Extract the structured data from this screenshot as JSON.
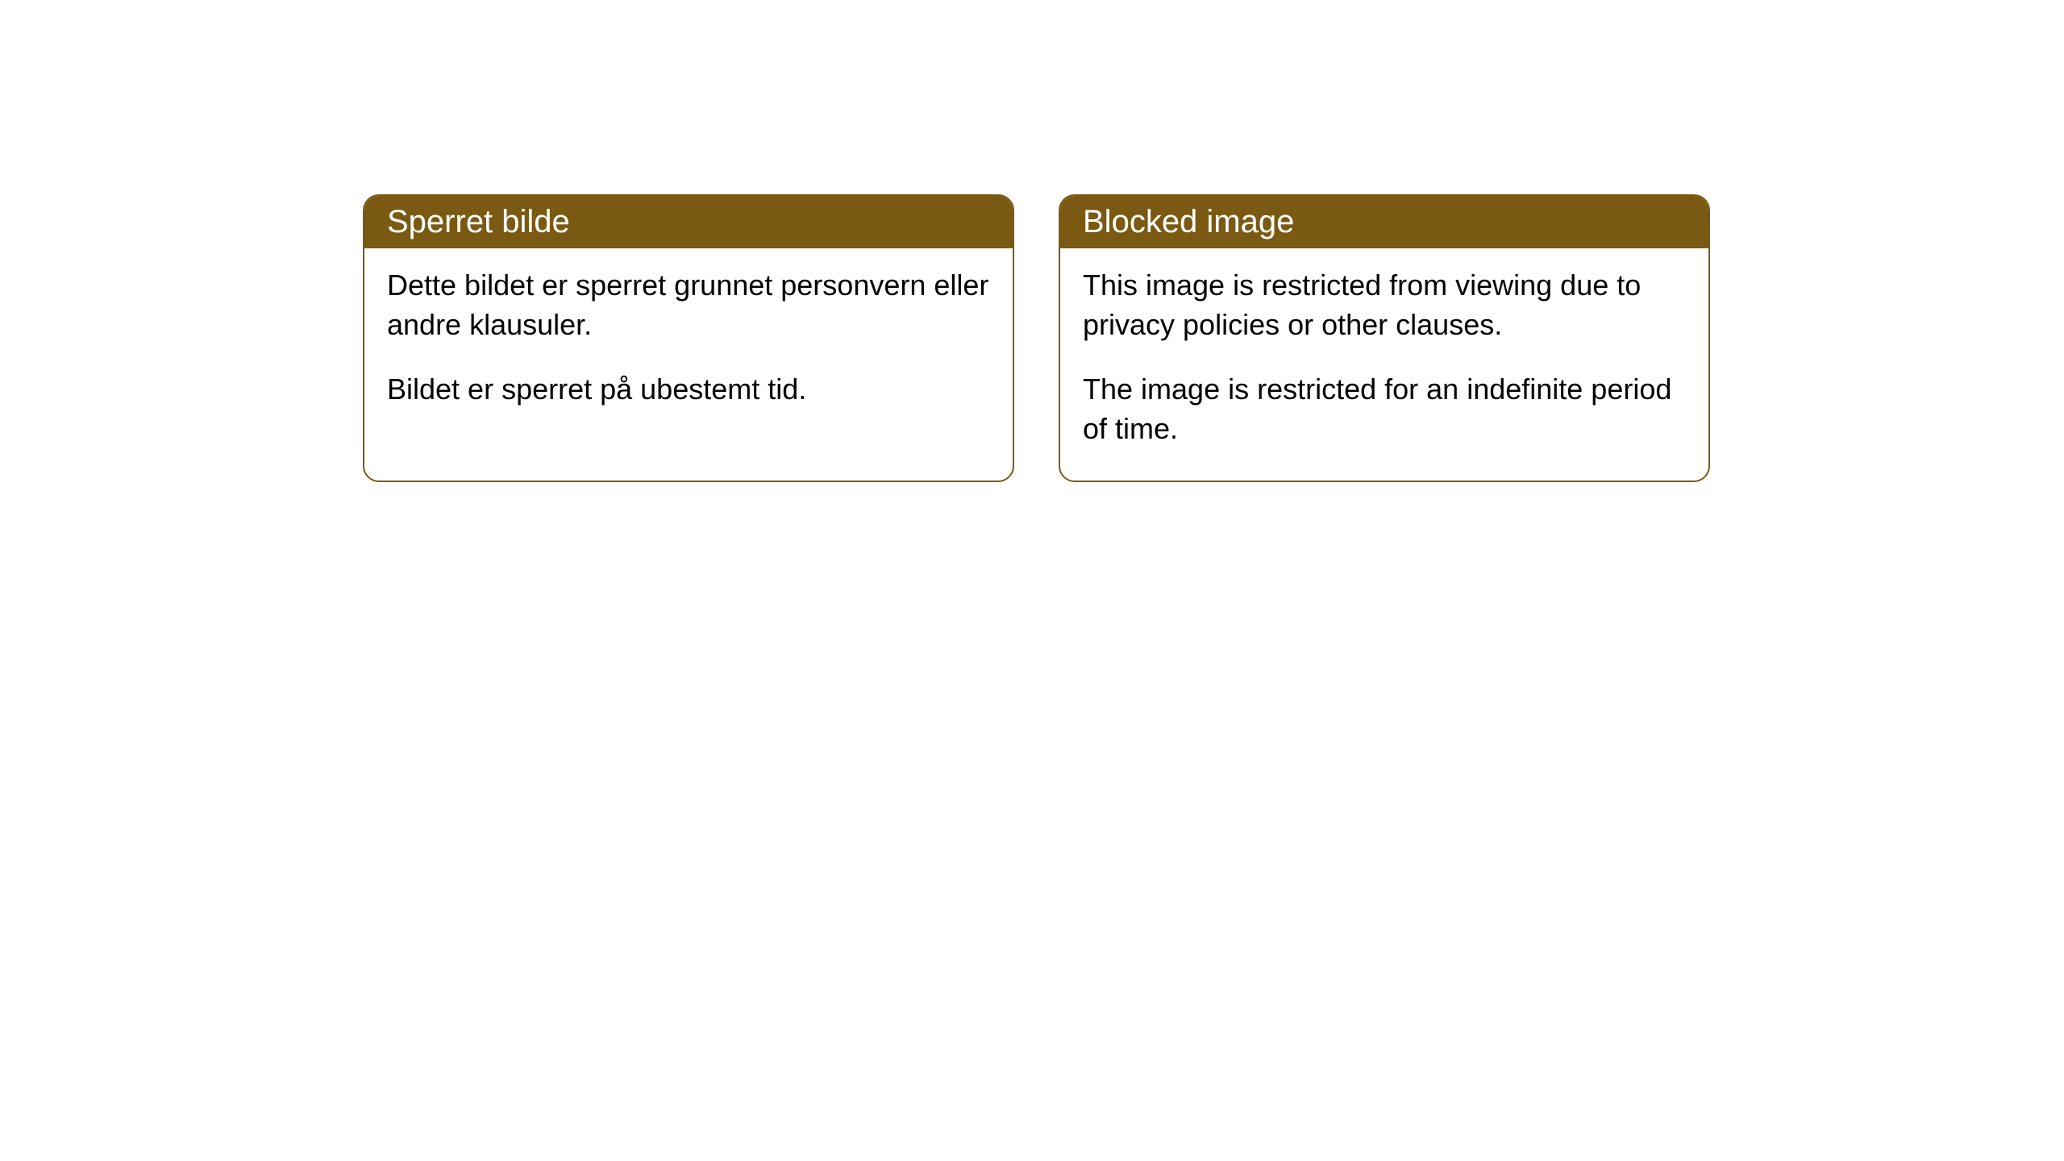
{
  "cards": [
    {
      "title": "Sperret bilde",
      "paragraph1": "Dette bildet er sperret grunnet personvern eller andre klausuler.",
      "paragraph2": "Bildet er sperret på ubestemt tid."
    },
    {
      "title": "Blocked image",
      "paragraph1": "This image is restricted from viewing due to privacy policies or other clauses.",
      "paragraph2": "The image is restricted for an indefinite period of time."
    }
  ],
  "styling": {
    "header_background_color": "#7a5a12",
    "header_text_color": "#ffffff",
    "border_color": "#7a5a12",
    "card_background_color": "#ffffff",
    "page_background_color": "#ffffff",
    "border_radius": 20,
    "header_fontsize": 40,
    "body_fontsize": 36
  }
}
